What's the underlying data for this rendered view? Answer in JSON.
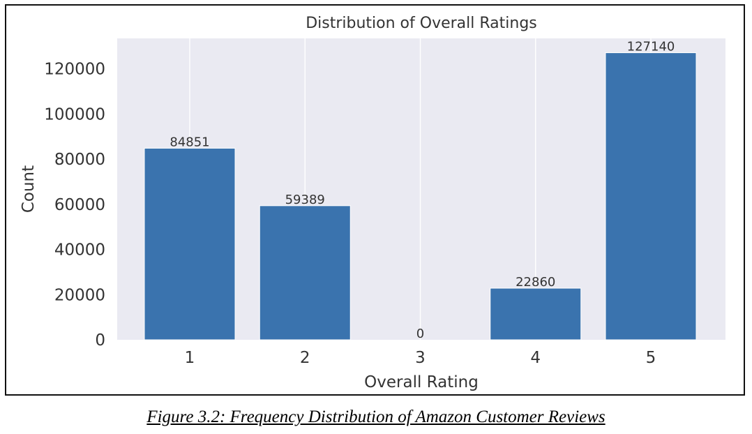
{
  "caption": "Figure 3.2: Frequency Distribution of Amazon Customer Reviews",
  "chart_data": {
    "type": "bar",
    "title": "Distribution of Overall Ratings",
    "xlabel": "Overall Rating",
    "ylabel": "Count",
    "categories": [
      "1",
      "2",
      "3",
      "4",
      "5"
    ],
    "values": [
      84851,
      59389,
      0,
      22860,
      127140
    ],
    "data_labels": [
      "84851",
      "59389",
      "0",
      "22860",
      "127140"
    ],
    "ylim": [
      0,
      133500
    ],
    "yticks": [
      0,
      20000,
      40000,
      60000,
      80000,
      100000,
      120000
    ],
    "ytick_labels": [
      "0",
      "20000",
      "40000",
      "60000",
      "80000",
      "100000",
      "120000"
    ],
    "grid": true,
    "colors": {
      "bar": "#3a73ae",
      "plot_background": "#eaeaf2",
      "grid": "#ffffff",
      "text": "#333333"
    }
  }
}
